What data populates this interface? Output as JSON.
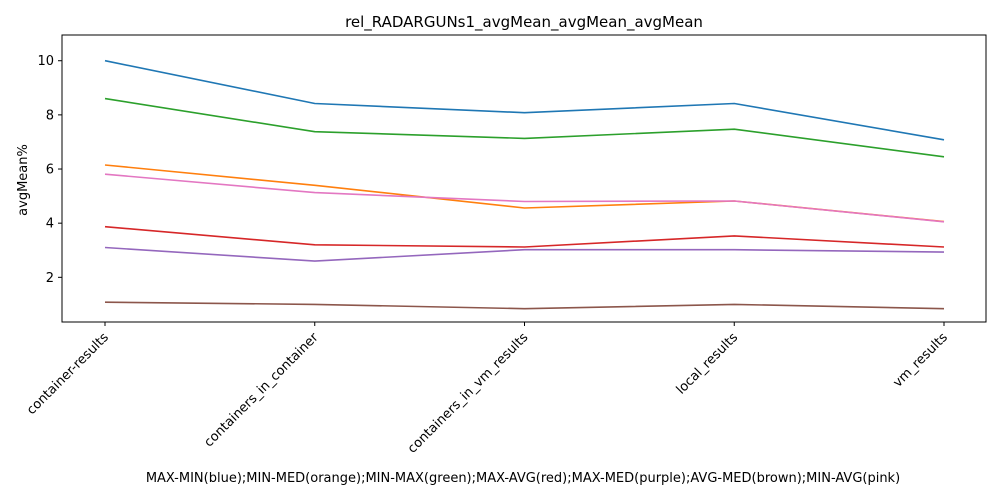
{
  "chart_data": {
    "type": "line",
    "title": "rel_RADARGUNs1_avgMean_avgMean_avgMean",
    "xlabel": "MAX-MIN(blue);MIN-MED(orange);MIN-MAX(green);MAX-AVG(red);MAX-MED(purple);AVG-MED(brown);MIN-AVG(pink)",
    "ylabel": "avgMean%",
    "categories": [
      "container-results",
      "containers_in_container",
      "containers_in_vm_results",
      "local_results",
      "vm_results"
    ],
    "ylim": [
      0.35,
      10.95
    ],
    "yticks": [
      2,
      4,
      6,
      8,
      10
    ],
    "grid": false,
    "series": [
      {
        "color": "#1f77b4",
        "values": [
          10.0,
          8.42,
          8.08,
          8.42,
          7.08
        ]
      },
      {
        "color": "#ff7f0e",
        "values": [
          6.15,
          5.4,
          4.56,
          4.82,
          4.06
        ]
      },
      {
        "color": "#2ca02c",
        "values": [
          8.6,
          7.38,
          7.13,
          7.47,
          6.45
        ]
      },
      {
        "color": "#d62728",
        "values": [
          3.87,
          3.2,
          3.12,
          3.53,
          3.12
        ]
      },
      {
        "color": "#9467bd",
        "values": [
          3.1,
          2.6,
          3.02,
          3.02,
          2.93
        ]
      },
      {
        "color": "#8c564b",
        "values": [
          1.08,
          1.0,
          0.84,
          1.0,
          0.84
        ]
      },
      {
        "color": "#e377c2",
        "values": [
          5.81,
          5.13,
          4.8,
          4.82,
          4.05
        ]
      }
    ]
  }
}
